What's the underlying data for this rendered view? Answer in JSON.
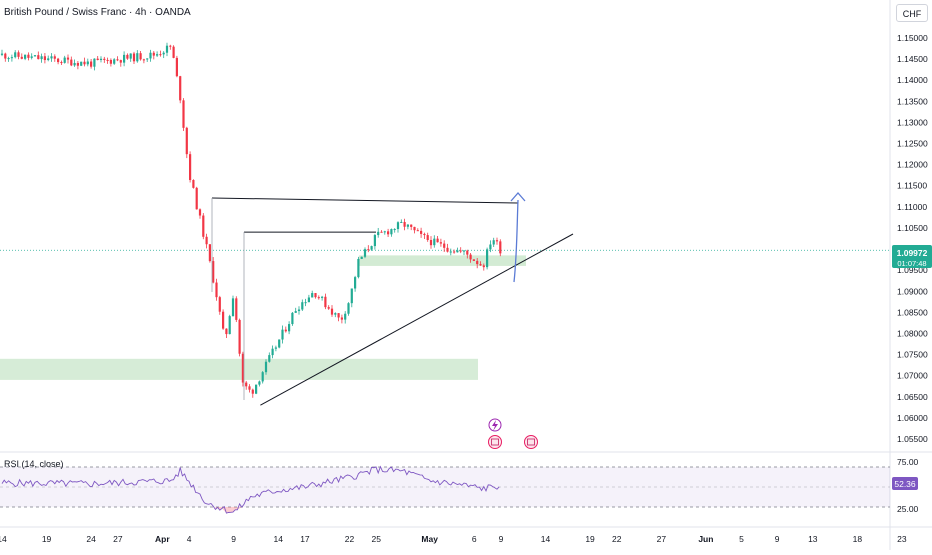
{
  "header": {
    "title": "British Pound / Swiss Franc · 4h · OANDA",
    "currency_button": "CHF"
  },
  "price_axis": {
    "ticks": [
      "1.15000",
      "1.14500",
      "1.14000",
      "1.13500",
      "1.13000",
      "1.12500",
      "1.12000",
      "1.11500",
      "1.11000",
      "1.10500",
      "1.09500",
      "1.09000",
      "1.08500",
      "1.08000",
      "1.07500",
      "1.07000",
      "1.06500",
      "1.06000",
      "1.05500"
    ],
    "current_price": "1.09972",
    "countdown": "01:07:48",
    "current_color": "#22ab94"
  },
  "time_axis": {
    "labels": [
      "14",
      "19",
      "24",
      "27",
      "Apr",
      "4",
      "9",
      "14",
      "17",
      "22",
      "25",
      "May",
      "6",
      "9",
      "14",
      "19",
      "22",
      "27",
      "Jun",
      "5",
      "9",
      "13",
      "18",
      "23"
    ]
  },
  "rsi": {
    "label": "RSI (14, close)",
    "upper_label": "75.00",
    "lower_label": "25.00",
    "value": "52.36",
    "line_color": "#7e57c2"
  },
  "colors": {
    "up": "#22ab94",
    "down": "#f23645",
    "zone": "#c8e6c9",
    "arrow": "#5b7bd5"
  },
  "chart_data": {
    "type": "candlestick",
    "instrument": "British Pound / Swiss Franc",
    "timeframe": "4h",
    "ylim": [
      1.0525,
      1.153
    ],
    "x_range": [
      "2025-03-14",
      "2025-06-23"
    ],
    "last_close": 1.09972,
    "close_path": [
      [
        "2025-03-14",
        1.146
      ],
      [
        "2025-03-19",
        1.145
      ],
      [
        "2025-03-24",
        1.144
      ],
      [
        "2025-03-27",
        1.145
      ],
      [
        "2025-03-31",
        1.146
      ],
      [
        "2025-04-01",
        1.147
      ],
      [
        "2025-04-02",
        1.148
      ],
      [
        "2025-04-03",
        1.136
      ],
      [
        "2025-04-04",
        1.118
      ],
      [
        "2025-04-06",
        1.1
      ],
      [
        "2025-04-07",
        1.09
      ],
      [
        "2025-04-08",
        1.078
      ],
      [
        "2025-04-09",
        1.09
      ],
      [
        "2025-04-10",
        1.068
      ],
      [
        "2025-04-11",
        1.066
      ],
      [
        "2025-04-14",
        1.078
      ],
      [
        "2025-04-16",
        1.086
      ],
      [
        "2025-04-18",
        1.09
      ],
      [
        "2025-04-21",
        1.083
      ],
      [
        "2025-04-22",
        1.088
      ],
      [
        "2025-04-23",
        1.097
      ],
      [
        "2025-04-25",
        1.103
      ],
      [
        "2025-04-28",
        1.106
      ],
      [
        "2025-04-30",
        1.103
      ],
      [
        "2025-05-02",
        1.101
      ],
      [
        "2025-05-05",
        1.099
      ],
      [
        "2025-05-07",
        1.096
      ],
      [
        "2025-05-08",
        1.103
      ],
      [
        "2025-05-09",
        1.0997
      ]
    ],
    "drawings": [
      {
        "type": "resistance_line",
        "y": 1.112
      },
      {
        "type": "horizontal_line",
        "y": 1.104
      },
      {
        "type": "ascending_trendline",
        "from": [
          "2025-04-12",
          1.063
        ],
        "to": [
          "2025-05-15",
          1.105
        ]
      },
      {
        "type": "demand_zone",
        "y": [
          1.069,
          1.074
        ]
      },
      {
        "type": "support_zone",
        "y": [
          1.096,
          1.0985
        ]
      },
      {
        "type": "projection_arrow",
        "to": 1.112
      }
    ],
    "rsi": {
      "period": 14,
      "levels": [
        25,
        75
      ],
      "last": 52.36,
      "path": [
        [
          "2025-03-14",
          55
        ],
        [
          "2025-03-24",
          54
        ],
        [
          "2025-04-02",
          58
        ],
        [
          "2025-04-03",
          70
        ],
        [
          "2025-04-06",
          30
        ],
        [
          "2025-04-09",
          18
        ],
        [
          "2025-04-11",
          38
        ],
        [
          "2025-04-14",
          46
        ],
        [
          "2025-04-17",
          50
        ],
        [
          "2025-04-22",
          62
        ],
        [
          "2025-04-25",
          72
        ],
        [
          "2025-04-28",
          70
        ],
        [
          "2025-05-01",
          58
        ],
        [
          "2025-05-05",
          52
        ],
        [
          "2025-05-07",
          48
        ],
        [
          "2025-05-09",
          52
        ]
      ]
    }
  }
}
